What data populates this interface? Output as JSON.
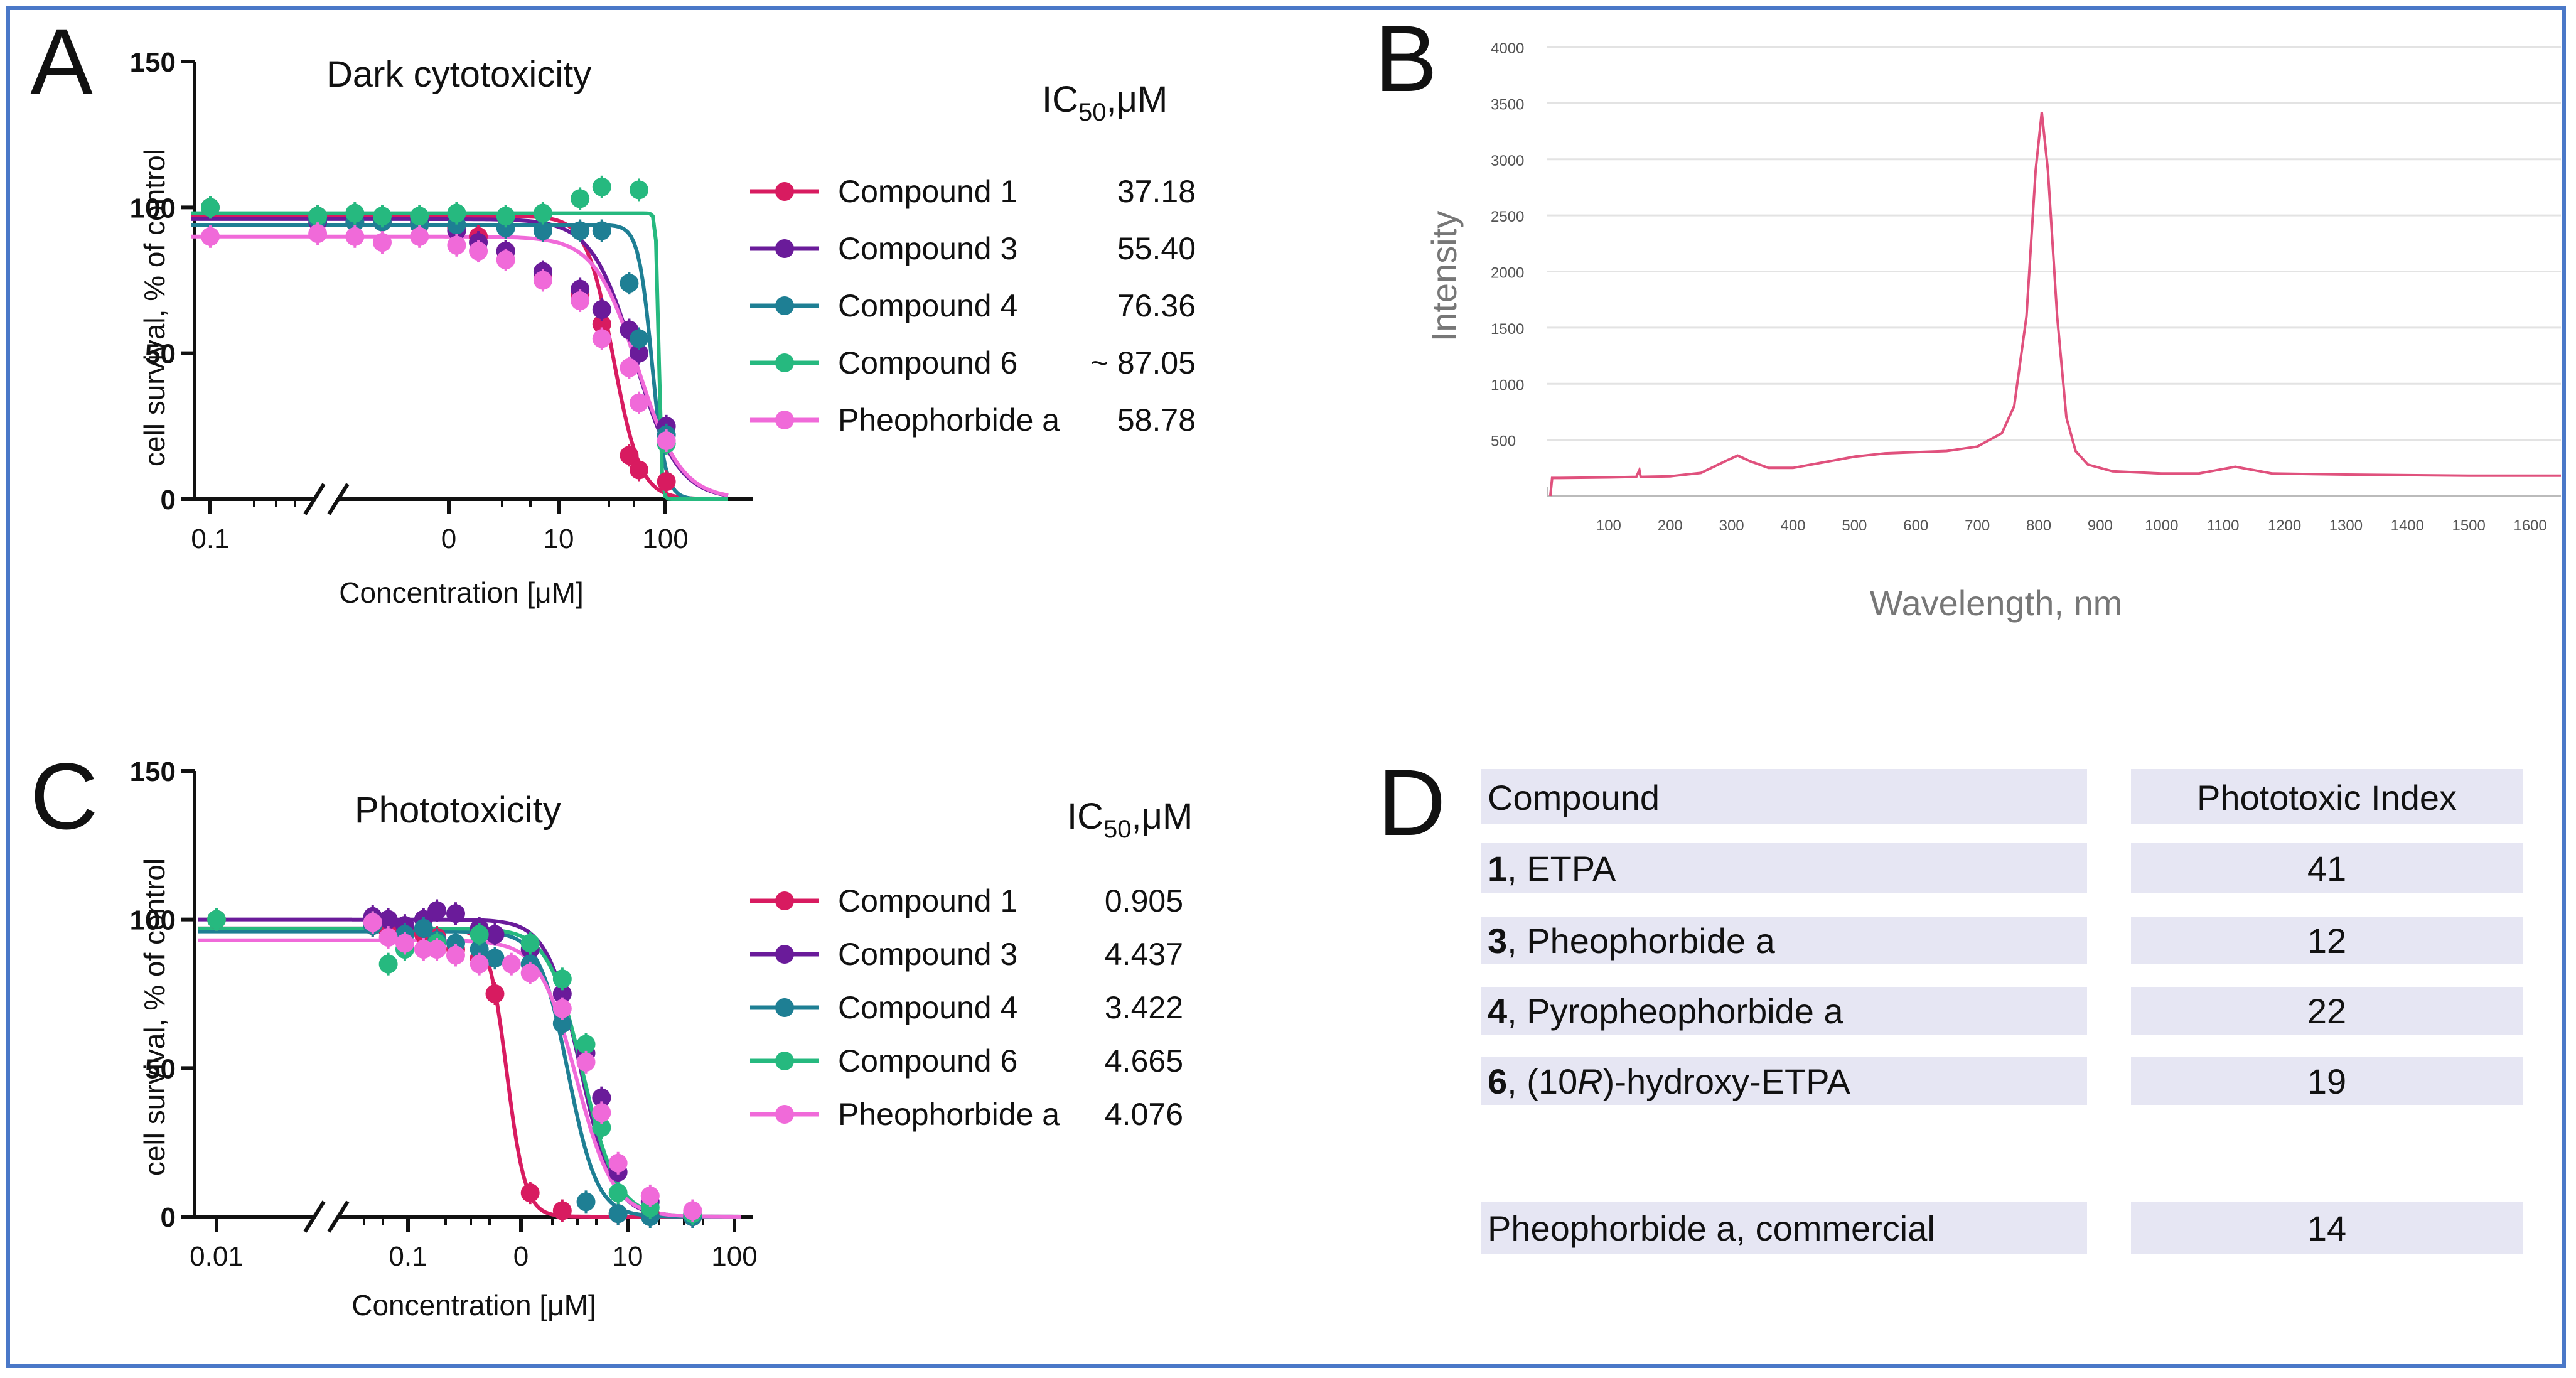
{
  "panels": {
    "a": "A",
    "b": "B",
    "c": "C",
    "d": "D"
  },
  "colors": {
    "compound1": "#d81b60",
    "compound3": "#6a1b9a",
    "compound4": "#1e7f94",
    "compound6": "#26b97f",
    "pheo": "#f06ad9",
    "spectrum": "#e0517d",
    "frame": "#4a78c8"
  },
  "chart_data": [
    {
      "id": "A",
      "type": "scatter",
      "title": "Dark cytotoxicity",
      "xlabel": "Concentration [μM]",
      "ylabel": "cell survival, % of control",
      "ylim": [
        0,
        150
      ],
      "yticks": [
        "0",
        "50",
        "100",
        "150"
      ],
      "xtick_labels": [
        "0.1",
        "0",
        "10",
        "100"
      ],
      "ic50_header": {
        "base": "IC",
        "sub": "50",
        "tail": ",μM"
      },
      "series": [
        {
          "name": "Compound 1",
          "color_key": "compound1",
          "ic50_label": "37.18",
          "points": [
            [
              0.1,
              100
            ],
            [
              0.15,
              97
            ],
            [
              0.3,
              95
            ],
            [
              0.5,
              95
            ],
            [
              1,
              94
            ],
            [
              2,
              93
            ],
            [
              3,
              90
            ],
            [
              5,
              85
            ],
            [
              10,
              76
            ],
            [
              20,
              70
            ],
            [
              30,
              60
            ],
            [
              50,
              15
            ],
            [
              60,
              10
            ],
            [
              100,
              6
            ]
          ],
          "curve": {
            "top": 97,
            "bottom": 0,
            "ic50": 37.18,
            "hill": 4
          }
        },
        {
          "name": "Compound 3",
          "color_key": "compound3",
          "ic50_label": "55.40",
          "points": [
            [
              0.15,
              95
            ],
            [
              0.3,
              96
            ],
            [
              0.5,
              96
            ],
            [
              1,
              95
            ],
            [
              2,
              92
            ],
            [
              3,
              88
            ],
            [
              5,
              85
            ],
            [
              10,
              78
            ],
            [
              20,
              72
            ],
            [
              30,
              65
            ],
            [
              50,
              58
            ],
            [
              60,
              50
            ],
            [
              100,
              25
            ]
          ],
          "curve": {
            "top": 96,
            "bottom": 0,
            "ic50": 55.4,
            "hill": 2.5
          }
        },
        {
          "name": "Compound 4",
          "color_key": "compound4",
          "ic50_label": "76.36",
          "points": [
            [
              0.15,
              96
            ],
            [
              0.3,
              95
            ],
            [
              0.5,
              95
            ],
            [
              1,
              94
            ],
            [
              2,
              94
            ],
            [
              5,
              93
            ],
            [
              10,
              92
            ],
            [
              20,
              92
            ],
            [
              30,
              92
            ],
            [
              50,
              74
            ],
            [
              60,
              55
            ],
            [
              100,
              22
            ]
          ],
          "curve": {
            "top": 94,
            "bottom": 0,
            "ic50": 76.36,
            "hill": 8
          }
        },
        {
          "name": "Compound 6",
          "color_key": "compound6",
          "ic50_label": "~ 87.05",
          "points": [
            [
              0.1,
              100
            ],
            [
              0.15,
              97
            ],
            [
              0.3,
              98
            ],
            [
              0.5,
              97
            ],
            [
              1,
              97
            ],
            [
              2,
              98
            ],
            [
              5,
              97
            ],
            [
              10,
              98
            ],
            [
              20,
              103
            ],
            [
              30,
              107
            ],
            [
              60,
              106
            ],
            [
              100,
              19
            ]
          ],
          "curve": {
            "top": 98,
            "bottom": 0,
            "ic50": 87.05,
            "hill": 40
          }
        },
        {
          "name": "Pheophorbide a",
          "color_key": "pheo",
          "ic50_label": "58.78",
          "points": [
            [
              0.1,
              90
            ],
            [
              0.15,
              91
            ],
            [
              0.3,
              90
            ],
            [
              0.5,
              88
            ],
            [
              1,
              90
            ],
            [
              2,
              87
            ],
            [
              3,
              85
            ],
            [
              5,
              82
            ],
            [
              10,
              75
            ],
            [
              20,
              68
            ],
            [
              30,
              55
            ],
            [
              50,
              45
            ],
            [
              60,
              33
            ],
            [
              100,
              20
            ]
          ],
          "curve": {
            "top": 90,
            "bottom": 0,
            "ic50": 58.78,
            "hill": 2.5
          }
        }
      ]
    },
    {
      "id": "B",
      "type": "line",
      "title": "",
      "xlabel": "Wavelength, nm",
      "ylabel": "Intensity",
      "xlim": [
        0,
        1650
      ],
      "ylim": [
        0,
        4000
      ],
      "xticks": [
        "100",
        "200",
        "300",
        "400",
        "500",
        "600",
        "700",
        "800",
        "900",
        "1000",
        "1100",
        "1200",
        "1300",
        "1400",
        "1500",
        "1600"
      ],
      "yticks": [
        "500",
        "1000",
        "1500",
        "2000",
        "2500",
        "3000",
        "3500",
        "4000"
      ],
      "series": [
        {
          "name": "spectrum",
          "color_key": "spectrum",
          "points": [
            [
              5,
              0
            ],
            [
              8,
              160
            ],
            [
              20,
              160
            ],
            [
              100,
              165
            ],
            [
              145,
              170
            ],
            [
              150,
              230
            ],
            [
              152,
              170
            ],
            [
              200,
              175
            ],
            [
              250,
              205
            ],
            [
              290,
              310
            ],
            [
              310,
              360
            ],
            [
              330,
              310
            ],
            [
              360,
              250
            ],
            [
              400,
              250
            ],
            [
              450,
              300
            ],
            [
              500,
              350
            ],
            [
              550,
              380
            ],
            [
              600,
              390
            ],
            [
              650,
              400
            ],
            [
              700,
              440
            ],
            [
              740,
              560
            ],
            [
              760,
              800
            ],
            [
              780,
              1600
            ],
            [
              795,
              2900
            ],
            [
              805,
              3420
            ],
            [
              815,
              2900
            ],
            [
              830,
              1600
            ],
            [
              845,
              700
            ],
            [
              860,
              400
            ],
            [
              880,
              280
            ],
            [
              920,
              220
            ],
            [
              1000,
              200
            ],
            [
              1060,
              200
            ],
            [
              1100,
              240
            ],
            [
              1120,
              260
            ],
            [
              1140,
              240
            ],
            [
              1180,
              200
            ],
            [
              1300,
              190
            ],
            [
              1400,
              185
            ],
            [
              1500,
              180
            ],
            [
              1650,
              180
            ]
          ]
        }
      ]
    },
    {
      "id": "C",
      "type": "scatter",
      "title": "Phototoxicity",
      "xlabel": "Concentration [μM]",
      "ylabel": "cell survival, % of control",
      "ylim": [
        0,
        150
      ],
      "yticks": [
        "0",
        "50",
        "100",
        "150"
      ],
      "xtick_labels": [
        "0.01",
        "0.1",
        "0",
        "10",
        "100"
      ],
      "ic50_header": {
        "base": "IC",
        "sub": "50",
        "tail": ",μM"
      },
      "series": [
        {
          "name": "Compound 1",
          "color_key": "compound1",
          "ic50_label": "0.905",
          "points": [
            [
              0.01,
              100
            ],
            [
              0.05,
              98
            ],
            [
              0.07,
              96
            ],
            [
              0.1,
              97
            ],
            [
              0.15,
              95
            ],
            [
              0.2,
              94
            ],
            [
              0.3,
              90
            ],
            [
              0.5,
              87
            ],
            [
              0.7,
              75
            ],
            [
              1.5,
              8
            ],
            [
              3,
              2
            ],
            [
              10,
              1
            ],
            [
              20,
              1
            ],
            [
              50,
              0
            ]
          ],
          "curve": {
            "top": 97,
            "bottom": 0,
            "ic50": 0.905,
            "hill": 5
          }
        },
        {
          "name": "Compound 3",
          "color_key": "compound3",
          "ic50_label": "4.437",
          "points": [
            [
              0.05,
              101
            ],
            [
              0.07,
              100
            ],
            [
              0.1,
              98
            ],
            [
              0.15,
              100
            ],
            [
              0.2,
              103
            ],
            [
              0.3,
              102
            ],
            [
              0.5,
              97
            ],
            [
              0.7,
              95
            ],
            [
              1.5,
              90
            ],
            [
              3,
              75
            ],
            [
              5,
              55
            ],
            [
              7,
              40
            ],
            [
              10,
              15
            ],
            [
              20,
              5
            ],
            [
              50,
              1
            ]
          ],
          "curve": {
            "top": 100,
            "bottom": 0,
            "ic50": 4.437,
            "hill": 2.8
          }
        },
        {
          "name": "Compound 4",
          "color_key": "compound4",
          "ic50_label": "3.422",
          "points": [
            [
              0.05,
              98
            ],
            [
              0.1,
              95
            ],
            [
              0.15,
              97
            ],
            [
              0.2,
              93
            ],
            [
              0.3,
              92
            ],
            [
              0.5,
              90
            ],
            [
              0.7,
              87
            ],
            [
              1.5,
              85
            ],
            [
              3,
              65
            ],
            [
              5,
              5
            ],
            [
              10,
              1
            ],
            [
              20,
              0
            ],
            [
              50,
              0
            ]
          ],
          "curve": {
            "top": 96,
            "bottom": 0,
            "ic50": 3.422,
            "hill": 3.2
          }
        },
        {
          "name": "Compound 6",
          "color_key": "compound6",
          "ic50_label": "4.665",
          "points": [
            [
              0.01,
              100
            ],
            [
              0.05,
              99
            ],
            [
              0.07,
              85
            ],
            [
              0.1,
              90
            ],
            [
              0.2,
              92
            ],
            [
              0.5,
              95
            ],
            [
              1.5,
              92
            ],
            [
              3,
              80
            ],
            [
              5,
              58
            ],
            [
              7,
              30
            ],
            [
              10,
              8
            ],
            [
              20,
              3
            ],
            [
              50,
              1
            ]
          ],
          "curve": {
            "top": 97,
            "bottom": 0,
            "ic50": 4.665,
            "hill": 2.7
          }
        },
        {
          "name": "Pheophorbide a",
          "color_key": "pheo",
          "ic50_label": "4.076",
          "points": [
            [
              0.05,
              99
            ],
            [
              0.07,
              94
            ],
            [
              0.1,
              92
            ],
            [
              0.15,
              90
            ],
            [
              0.2,
              90
            ],
            [
              0.3,
              88
            ],
            [
              0.5,
              85
            ],
            [
              1,
              85
            ],
            [
              1.5,
              82
            ],
            [
              3,
              70
            ],
            [
              5,
              52
            ],
            [
              7,
              35
            ],
            [
              10,
              18
            ],
            [
              20,
              7
            ],
            [
              50,
              2
            ]
          ],
          "curve": {
            "top": 93,
            "bottom": 0,
            "ic50": 4.076,
            "hill": 2.5
          }
        }
      ]
    }
  ],
  "table": {
    "header": {
      "compound": "Compound",
      "index": "Phototoxic Index"
    },
    "rows": [
      {
        "num": "1",
        "rest": ", ETPA",
        "italic": "",
        "after": "",
        "index": "41"
      },
      {
        "num": "3",
        "rest": ", Pheophorbide a",
        "italic": "",
        "after": "",
        "index": "12"
      },
      {
        "num": "4",
        "rest": ", Pyropheophorbide a",
        "italic": "",
        "after": "",
        "index": "22"
      },
      {
        "num": "6",
        "rest": ", (10",
        "italic": "R",
        "after": ")-hydroxy-ETPA",
        "index": "19"
      }
    ],
    "commercial": {
      "name": "Pheophorbide a, commercial",
      "index": "14"
    }
  }
}
